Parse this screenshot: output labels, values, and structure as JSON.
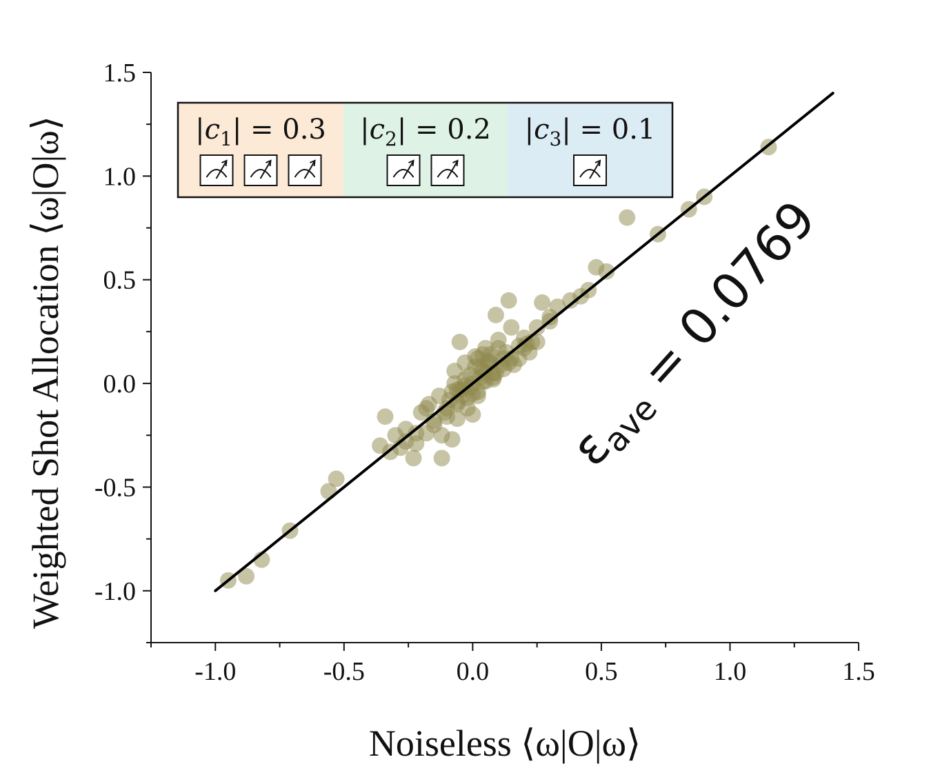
{
  "chart_data": {
    "type": "scatter",
    "title": "",
    "xlabel": "Noiseless ⟨ω|O|ω⟩",
    "ylabel_prefix": "Weighted Shot Allocation ",
    "ylabel_math": "⟨ω|O|ω⟩",
    "xlim": [
      -1.25,
      1.5
    ],
    "ylim": [
      -1.25,
      1.5
    ],
    "xticks": [
      "-1.0",
      "-0.5",
      "0.0",
      "0.5",
      "1.0",
      "1.5"
    ],
    "yticks": [
      "-1.0",
      "-0.5",
      "0.0",
      "0.5",
      "1.0",
      "1.5"
    ],
    "grid": false,
    "point_color": "#8f8a4e",
    "line_color": "#000000",
    "fit_line": {
      "x": [
        -1.0,
        1.4
      ],
      "y": [
        -1.0,
        1.4
      ]
    },
    "annotation": {
      "symbol": "ε",
      "subscript": "ave",
      "text": " = 0.0769"
    },
    "legend": {
      "placement": "top-left",
      "items": [
        {
          "label_c": "|c",
          "label_sub": "1",
          "label_rest": "| = 0.3",
          "meters": 3,
          "color": "#fce9d6"
        },
        {
          "label_c": "|c",
          "label_sub": "2",
          "label_rest": "| = 0.2",
          "meters": 2,
          "color": "#dff2e6"
        },
        {
          "label_c": "|c",
          "label_sub": "3",
          "label_rest": "| = 0.1",
          "meters": 1,
          "color": "#dcecf5"
        }
      ]
    },
    "series": [
      {
        "x": [
          -0.95,
          -0.88,
          -0.82,
          -0.71,
          -0.56,
          -0.53,
          -0.36,
          -0.34,
          -0.32,
          -0.3,
          -0.28,
          -0.26,
          -0.23,
          -0.22,
          -0.2,
          -0.18,
          -0.17,
          -0.15,
          -0.13,
          -0.12,
          -0.1,
          -0.08,
          -0.07,
          -0.06,
          -0.05,
          -0.04,
          -0.03,
          -0.02,
          -0.01,
          0.0,
          0.01,
          0.02,
          0.03,
          0.04,
          0.05,
          0.06,
          0.07,
          0.08,
          0.09,
          0.1,
          0.12,
          0.14,
          0.16,
          0.18,
          0.2,
          0.22,
          0.25,
          0.27,
          0.3,
          0.33,
          0.38,
          0.42,
          0.45,
          0.48,
          0.52,
          0.6,
          0.72,
          0.84,
          0.9,
          1.15,
          -0.06,
          0.03,
          0.15,
          -0.12,
          -0.03,
          0.2,
          -0.22,
          0.08,
          -0.07,
          0.05,
          0.01,
          -0.1,
          0.11,
          -0.02,
          0.06,
          -0.05,
          0.13,
          0.04,
          -0.01,
          0.02,
          0.1,
          -0.09,
          -0.04,
          0.07,
          0.0,
          -0.06,
          0.04,
          0.12,
          -0.11,
          0.08,
          0.18,
          -0.15,
          0.25,
          0.3,
          -0.26,
          0.14,
          -0.18,
          0.21,
          -0.08,
          0.05,
          0.02,
          -0.03,
          0.09,
          -0.06,
          0.0,
          0.15,
          0.23
        ],
        "y": [
          -0.95,
          -0.93,
          -0.85,
          -0.71,
          -0.52,
          -0.46,
          -0.3,
          -0.16,
          -0.33,
          -0.25,
          -0.31,
          -0.22,
          -0.36,
          -0.29,
          -0.14,
          -0.24,
          -0.1,
          -0.2,
          -0.06,
          -0.36,
          -0.16,
          -0.27,
          0.06,
          -0.09,
          0.2,
          -0.03,
          0.1,
          -0.12,
          0.04,
          -0.05,
          0.13,
          -0.06,
          0.08,
          0.01,
          0.17,
          0.1,
          0.14,
          0.05,
          0.33,
          0.21,
          0.12,
          0.4,
          0.09,
          0.18,
          0.22,
          0.15,
          0.2,
          0.39,
          0.32,
          0.37,
          0.4,
          0.42,
          0.45,
          0.56,
          0.54,
          0.8,
          0.72,
          0.84,
          0.9,
          1.14,
          -0.17,
          0.03,
          0.27,
          -0.25,
          -0.01,
          0.17,
          -0.24,
          0.02,
          0.0,
          0.05,
          0.08,
          -0.12,
          0.09,
          -0.07,
          0.11,
          -0.03,
          0.15,
          0.06,
          -0.02,
          0.12,
          0.17,
          -0.08,
          -0.06,
          0.1,
          -0.15,
          -0.1,
          0.14,
          0.07,
          -0.14,
          0.03,
          0.12,
          -0.18,
          0.27,
          0.3,
          -0.28,
          0.1,
          -0.12,
          0.19,
          -0.04,
          0.01,
          -0.04,
          0.02,
          0.05,
          -0.03,
          0.0,
          0.12,
          0.2
        ]
      }
    ]
  }
}
